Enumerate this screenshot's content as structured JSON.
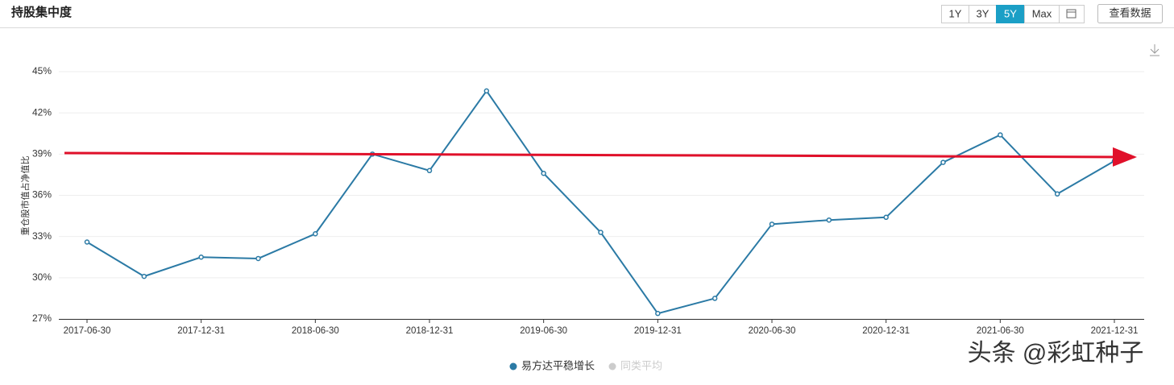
{
  "chart_data": {
    "type": "line",
    "title": "持股集中度",
    "range_options": [
      "1Y",
      "3Y",
      "5Y",
      "Max"
    ],
    "selected_range": "5Y",
    "view_data_button": "查看数据",
    "ylabel": "重仓股市值占净值比",
    "categories": [
      "2017-06-30",
      null,
      "2017-12-31",
      null,
      "2018-06-30",
      null,
      "2018-12-31",
      null,
      "2019-06-30",
      null,
      "2019-12-31",
      null,
      "2020-06-30",
      null,
      "2020-12-31",
      null,
      "2021-06-30",
      null,
      "2021-12-31"
    ],
    "series": [
      {
        "name": "易方达平稳增长",
        "color": "#2b7aa5",
        "values": [
          32.6,
          30.1,
          31.5,
          31.4,
          33.2,
          39.0,
          37.8,
          43.6,
          37.6,
          33.3,
          27.4,
          28.5,
          33.9,
          34.2,
          34.4,
          38.4,
          40.4,
          36.1,
          38.5
        ]
      }
    ],
    "hidden_series": [
      {
        "name": "同类平均",
        "color": "#cccccc"
      }
    ],
    "ylim": [
      27,
      45
    ],
    "yticks": [
      {
        "value": 27,
        "label": "27%"
      },
      {
        "value": 30,
        "label": "30%"
      },
      {
        "value": 33,
        "label": "33%"
      },
      {
        "value": 36,
        "label": "36%"
      },
      {
        "value": 39,
        "label": "39%"
      },
      {
        "value": 42,
        "label": "42%"
      },
      {
        "value": 45,
        "label": "45%"
      }
    ],
    "grid": true,
    "watermark": "头条 @彩虹种子"
  }
}
